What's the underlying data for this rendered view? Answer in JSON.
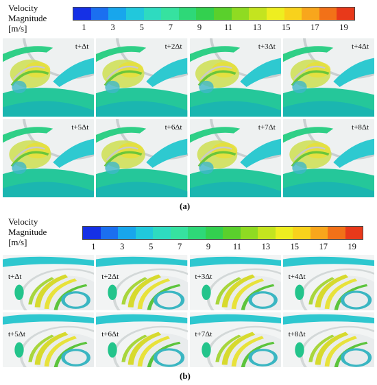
{
  "figure_a": {
    "legend": {
      "title_lines": [
        "Velocity",
        "Magnitude",
        "[m/s]"
      ],
      "tick_labels": [
        "1",
        "3",
        "5",
        "7",
        "9",
        "11",
        "13",
        "15",
        "17",
        "19"
      ],
      "colors": [
        "#1530e6",
        "#1b6ff0",
        "#18a6ec",
        "#21c8dc",
        "#2edbc0",
        "#36e2a0",
        "#2ed878",
        "#33d04f",
        "#5ad02c",
        "#8fdb22",
        "#c4e41f",
        "#eeee20",
        "#f8d21c",
        "#f8a61c",
        "#f27118",
        "#e8391a"
      ]
    },
    "frames": [
      "t+Δt",
      "t+2Δt",
      "t+3Δt",
      "t+4Δt",
      "t+5Δt",
      "t+6Δt",
      "t+7Δt",
      "t+8Δt"
    ],
    "caption": "(a)"
  },
  "figure_b": {
    "legend": {
      "title_lines": [
        "Velocity",
        "Magnitude",
        "[m/s]"
      ],
      "tick_labels": [
        "1",
        "3",
        "5",
        "7",
        "9",
        "11",
        "13",
        "15",
        "17",
        "19"
      ],
      "colors": [
        "#1530e6",
        "#1b6ff0",
        "#18a6ec",
        "#21c8dc",
        "#2edbc0",
        "#36e2a0",
        "#2ed878",
        "#33d04f",
        "#5ad02c",
        "#8fdb22",
        "#c4e41f",
        "#eeee20",
        "#f8d21c",
        "#f8a61c",
        "#f27118",
        "#e8391a"
      ]
    },
    "frames": [
      "t+Δt",
      "t+2Δt",
      "t+3Δt",
      "t+4Δt",
      "t+5Δt",
      "t+6Δt",
      "t+7Δt",
      "t+8Δt"
    ],
    "caption": "(b)"
  }
}
